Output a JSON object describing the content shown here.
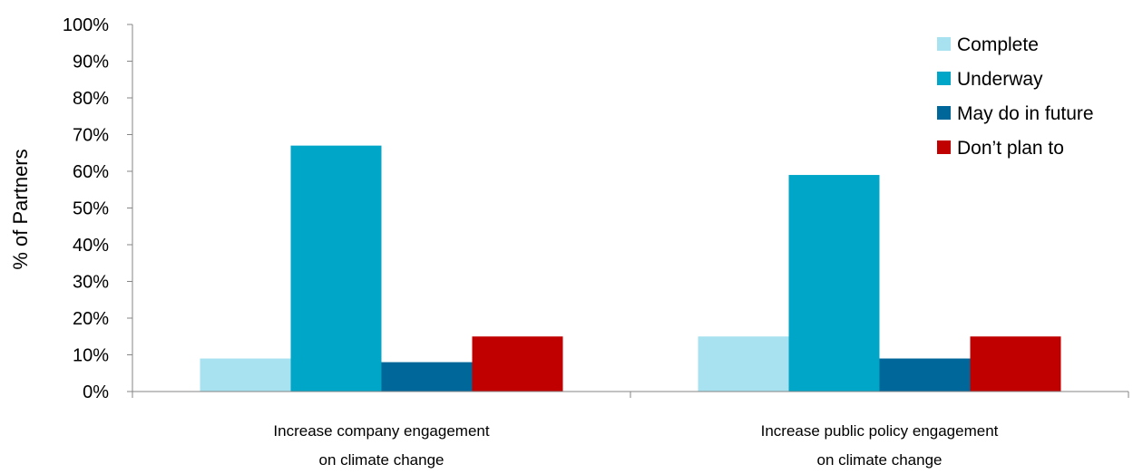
{
  "chart_data": {
    "type": "bar",
    "categories": [
      [
        "Increase company engagement",
        "on climate change"
      ],
      [
        "Increase public policy engagement",
        "on climate change"
      ]
    ],
    "series": [
      {
        "name": "Complete",
        "color": "#A8E2F0",
        "values": [
          9,
          15
        ]
      },
      {
        "name": "Underway",
        "color": "#00A6C8",
        "values": [
          67,
          59
        ]
      },
      {
        "name": "May do in future",
        "color": "#00679A",
        "values": [
          8,
          9
        ]
      },
      {
        "name": "Don’t plan to",
        "color": "#C00000",
        "values": [
          15,
          15
        ]
      }
    ],
    "ylabel": "% of Partners",
    "ylim": [
      0,
      100
    ],
    "yticks": [
      "0%",
      "10%",
      "20%",
      "30%",
      "40%",
      "50%",
      "60%",
      "70%",
      "80%",
      "90%",
      "100%"
    ],
    "grid": false,
    "legend_position": "top-right"
  }
}
